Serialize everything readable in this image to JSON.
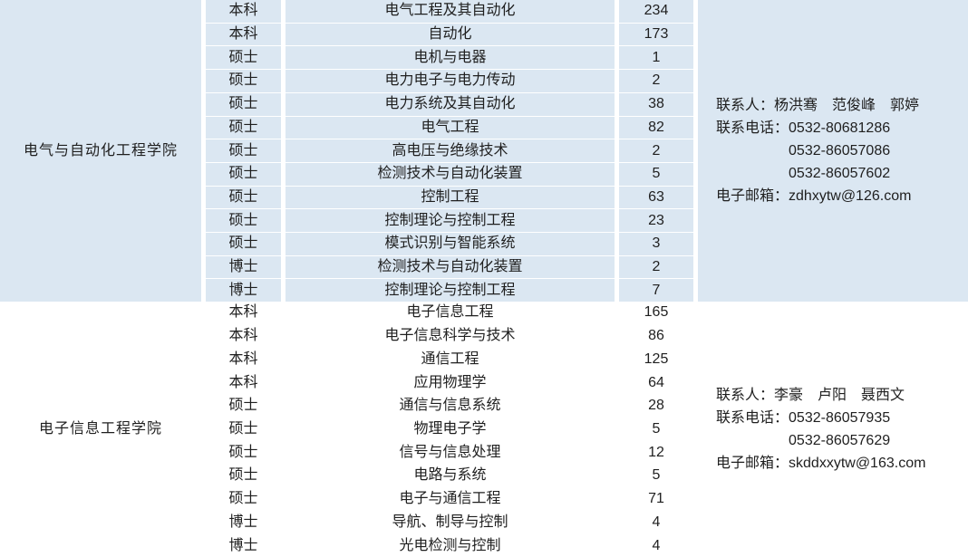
{
  "colors": {
    "group_highlight_bg": "#dbe7f2",
    "group_plain_bg": "#ffffff",
    "separator": "#ffffff",
    "text": "#1f1f1f"
  },
  "table": {
    "groups": [
      {
        "college": "电气与自动化工程学院",
        "highlighted": true,
        "rows": [
          {
            "degree": "本科",
            "major": "电气工程及其自动化",
            "count": "234"
          },
          {
            "degree": "本科",
            "major": "自动化",
            "count": "173"
          },
          {
            "degree": "硕士",
            "major": "电机与电器",
            "count": "1"
          },
          {
            "degree": "硕士",
            "major": "电力电子与电力传动",
            "count": "2"
          },
          {
            "degree": "硕士",
            "major": "电力系统及其自动化",
            "count": "38"
          },
          {
            "degree": "硕士",
            "major": "电气工程",
            "count": "82"
          },
          {
            "degree": "硕士",
            "major": "高电压与绝缘技术",
            "count": "2"
          },
          {
            "degree": "硕士",
            "major": "检测技术与自动化装置",
            "count": "5"
          },
          {
            "degree": "硕士",
            "major": "控制工程",
            "count": "63"
          },
          {
            "degree": "硕士",
            "major": "控制理论与控制工程",
            "count": "23"
          },
          {
            "degree": "硕士",
            "major": "模式识别与智能系统",
            "count": "3"
          },
          {
            "degree": "博士",
            "major": "检测技术与自动化装置",
            "count": "2"
          },
          {
            "degree": "博士",
            "major": "控制理论与控制工程",
            "count": "7"
          }
        ],
        "contact": {
          "person_label": "联系人：",
          "person_names": "杨洪骞　范俊峰　郭婷",
          "phone_label": "联系电话：",
          "phones": [
            "0532-80681286",
            "0532-86057086",
            "0532-86057602"
          ],
          "email_label": "电子邮箱：",
          "email": "zdhxytw@126.com"
        }
      },
      {
        "college": "电子信息工程学院",
        "highlighted": false,
        "rows": [
          {
            "degree": "本科",
            "major": "电子信息工程",
            "count": "165"
          },
          {
            "degree": "本科",
            "major": "电子信息科学与技术",
            "count": "86"
          },
          {
            "degree": "本科",
            "major": "通信工程",
            "count": "125"
          },
          {
            "degree": "本科",
            "major": "应用物理学",
            "count": "64"
          },
          {
            "degree": "硕士",
            "major": "通信与信息系统",
            "count": "28"
          },
          {
            "degree": "硕士",
            "major": "物理电子学",
            "count": "5"
          },
          {
            "degree": "硕士",
            "major": "信号与信息处理",
            "count": "12"
          },
          {
            "degree": "硕士",
            "major": "电路与系统",
            "count": "5"
          },
          {
            "degree": "硕士",
            "major": "电子与通信工程",
            "count": "71"
          },
          {
            "degree": "博士",
            "major": "导航、制导与控制",
            "count": "4"
          },
          {
            "degree": "博士",
            "major": "光电检测与控制",
            "count": "4"
          }
        ],
        "contact": {
          "person_label": "联系人：",
          "person_names": "李豪　卢阳　聂西文",
          "phone_label": "联系电话：",
          "phones": [
            "0532-86057935",
            "0532-86057629"
          ],
          "email_label": "电子邮箱：",
          "email": "skddxxytw@163.com"
        }
      }
    ]
  }
}
